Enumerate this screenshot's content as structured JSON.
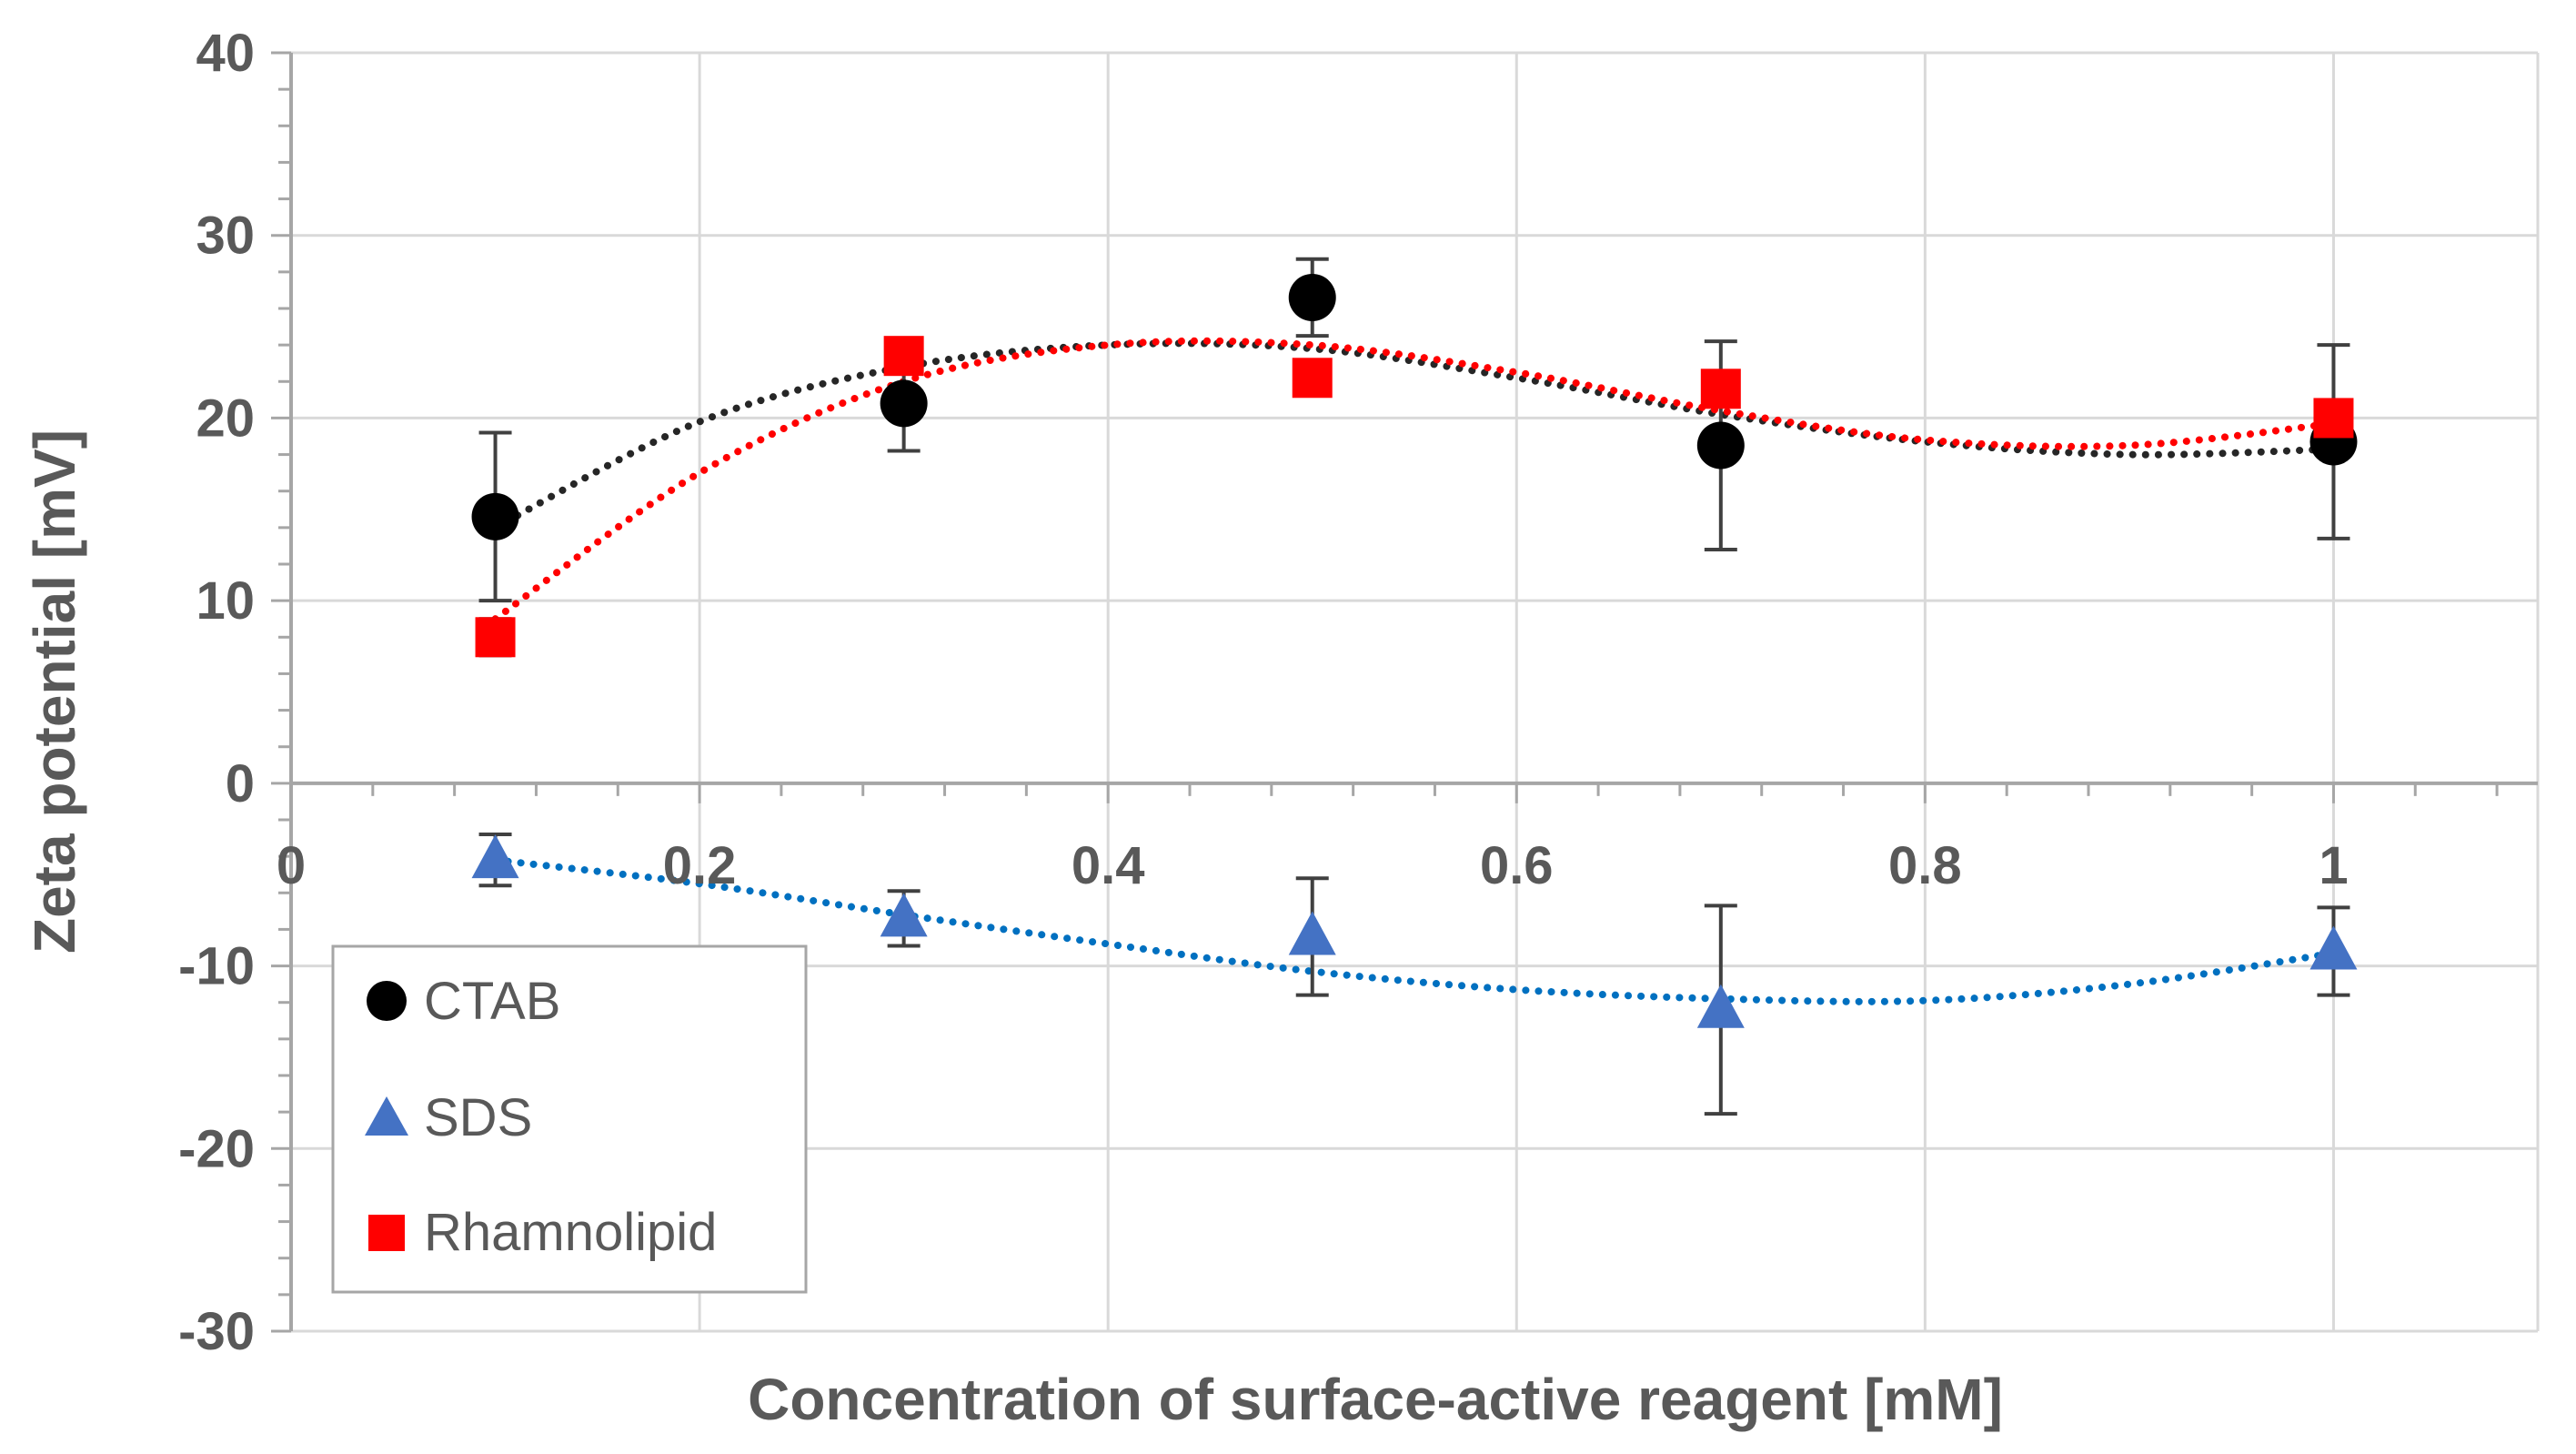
{
  "chart_data": {
    "type": "scatter",
    "title": "",
    "xlabel": "Concentration of surface-active reagent  [mM]",
    "ylabel": "Zeta potential [mV]",
    "xlim": [
      0,
      1.1
    ],
    "ylim": [
      -30,
      40
    ],
    "x_ticks": [
      0,
      0.2,
      0.4,
      0.6,
      0.8,
      1
    ],
    "x_tick_labels": [
      "0",
      "0.2",
      "0.4",
      "0.6",
      "0.8",
      "1"
    ],
    "y_ticks": [
      -30,
      -20,
      -10,
      0,
      10,
      20,
      30,
      40
    ],
    "y_tick_labels": [
      "-30",
      "-20",
      "-10",
      "0",
      "10",
      "20",
      "30",
      "40"
    ],
    "grid": true,
    "legend_position": "bottom-left",
    "series": [
      {
        "name": "CTAB",
        "marker": "circle",
        "color": "#000000",
        "trend_color": "#262626",
        "x": [
          0.1,
          0.3,
          0.5,
          0.7,
          1.0
        ],
        "y": [
          14.6,
          20.8,
          26.6,
          18.5,
          18.7
        ],
        "error": [
          4.6,
          2.6,
          2.1,
          5.7,
          5.3
        ]
      },
      {
        "name": "SDS",
        "marker": "triangle",
        "color": "#4472C4",
        "trend_color": "#0070C0",
        "x": [
          0.1,
          0.3,
          0.5,
          0.7,
          1.0
        ],
        "y": [
          -4.2,
          -7.4,
          -8.4,
          -12.4,
          -9.2
        ],
        "error": [
          1.4,
          1.5,
          3.2,
          5.7,
          2.4
        ]
      },
      {
        "name": "Rhamnolipid",
        "marker": "square",
        "color": "#FF0000",
        "trend_color": "#FF0000",
        "x": [
          0.1,
          0.3,
          0.5,
          0.7,
          1.0
        ],
        "y": [
          8.0,
          23.4,
          22.2,
          21.6,
          20.0
        ],
        "error": [
          1.0,
          0.5,
          0.5,
          0.5,
          0.5
        ]
      }
    ],
    "trendlines": [
      {
        "series": "CTAB",
        "x": [
          0.1,
          0.2,
          0.3,
          0.4,
          0.5,
          0.6,
          0.7,
          0.8,
          0.9,
          1.0
        ],
        "y": [
          14.0,
          19.8,
          22.8,
          24.0,
          23.8,
          22.2,
          20.2,
          18.7,
          18.0,
          18.3
        ]
      },
      {
        "series": "SDS",
        "x": [
          0.1,
          0.2,
          0.3,
          0.4,
          0.5,
          0.6,
          0.7,
          0.8,
          0.9,
          1.0
        ],
        "y": [
          -4.2,
          -5.5,
          -7.2,
          -8.8,
          -10.3,
          -11.3,
          -11.8,
          -11.9,
          -11.0,
          -9.3
        ]
      },
      {
        "series": "Rhamnolipid",
        "x": [
          0.1,
          0.2,
          0.3,
          0.4,
          0.5,
          0.6,
          0.7,
          0.8,
          0.9,
          1.0
        ],
        "y": [
          9.0,
          17.0,
          22.0,
          24.0,
          24.0,
          22.5,
          20.4,
          18.8,
          18.5,
          19.7
        ]
      }
    ]
  }
}
